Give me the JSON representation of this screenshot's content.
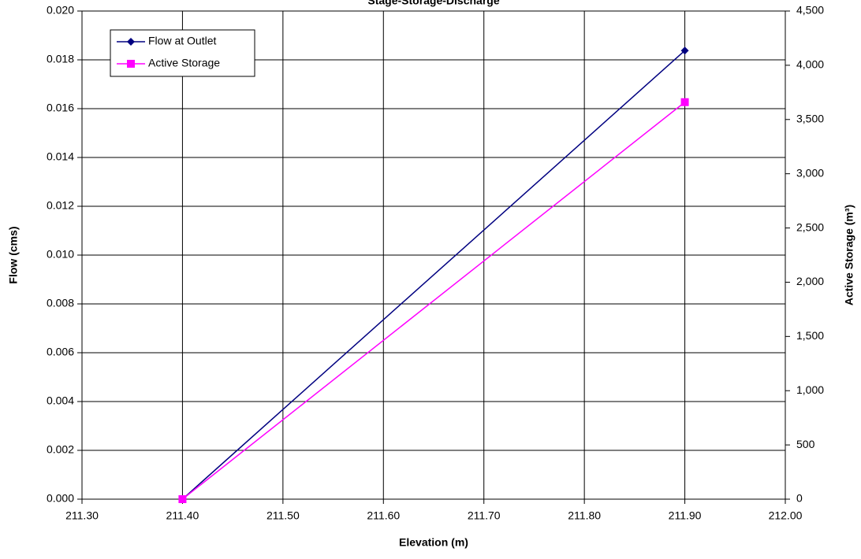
{
  "chart_data": {
    "type": "line",
    "title": "Stage-Storage-Discharge",
    "x_label": "Elevation (m)",
    "y_label": "Flow (cms)",
    "y2_label": "Active Storage (m³)",
    "x": [
      211.4,
      211.9
    ],
    "series": [
      {
        "name": "Flow at Outlet",
        "color": "#000080",
        "marker": "diamond",
        "values": [
          0,
          0.01838
        ]
      },
      {
        "name": "Active Storage",
        "color": "#ff00ff",
        "marker": "square",
        "axis": "y2",
        "values": [
          0,
          3660
        ]
      }
    ],
    "xlim": [
      211.3,
      212.0
    ],
    "xticks": [
      {
        "value": 211.3,
        "label": "211.30"
      },
      {
        "value": 211.4,
        "label": "211.40"
      },
      {
        "value": 211.5,
        "label": "211.50"
      },
      {
        "value": 211.6,
        "label": "211.60"
      },
      {
        "value": 211.7,
        "label": "211.70"
      },
      {
        "value": 211.8,
        "label": "211.80"
      },
      {
        "value": 211.9,
        "label": "211.90"
      },
      {
        "value": 212.0,
        "label": "212.00"
      }
    ],
    "ylim": [
      0,
      0.02
    ],
    "yticks": [
      {
        "value": 0,
        "label": "0.000"
      },
      {
        "value": 0.002,
        "label": "0.002"
      },
      {
        "value": 0.004,
        "label": "0.004"
      },
      {
        "value": 0.006,
        "label": "0.006"
      },
      {
        "value": 0.008,
        "label": "0.008"
      },
      {
        "value": 0.01,
        "label": "0.010"
      },
      {
        "value": 0.012,
        "label": "0.012"
      },
      {
        "value": 0.014,
        "label": "0.014"
      },
      {
        "value": 0.016,
        "label": "0.016"
      },
      {
        "value": 0.018,
        "label": "0.018"
      },
      {
        "value": 0.02,
        "label": "0.020"
      }
    ],
    "y2lim": [
      0,
      4500
    ],
    "y2ticks": [
      0,
      500,
      {
        "value": 1000,
        "label": "1,000"
      },
      {
        "value": 1500,
        "label": "1,500"
      },
      {
        "value": 2000,
        "label": "2,000"
      },
      {
        "value": 2500,
        "label": "2,500"
      },
      {
        "value": 3000,
        "label": "3,000"
      },
      {
        "value": 3500,
        "label": "3,500"
      },
      {
        "value": 4000,
        "label": "4,000"
      },
      {
        "value": 4500,
        "label": "4,500"
      }
    ],
    "grid": true,
    "legend": "upper left"
  }
}
